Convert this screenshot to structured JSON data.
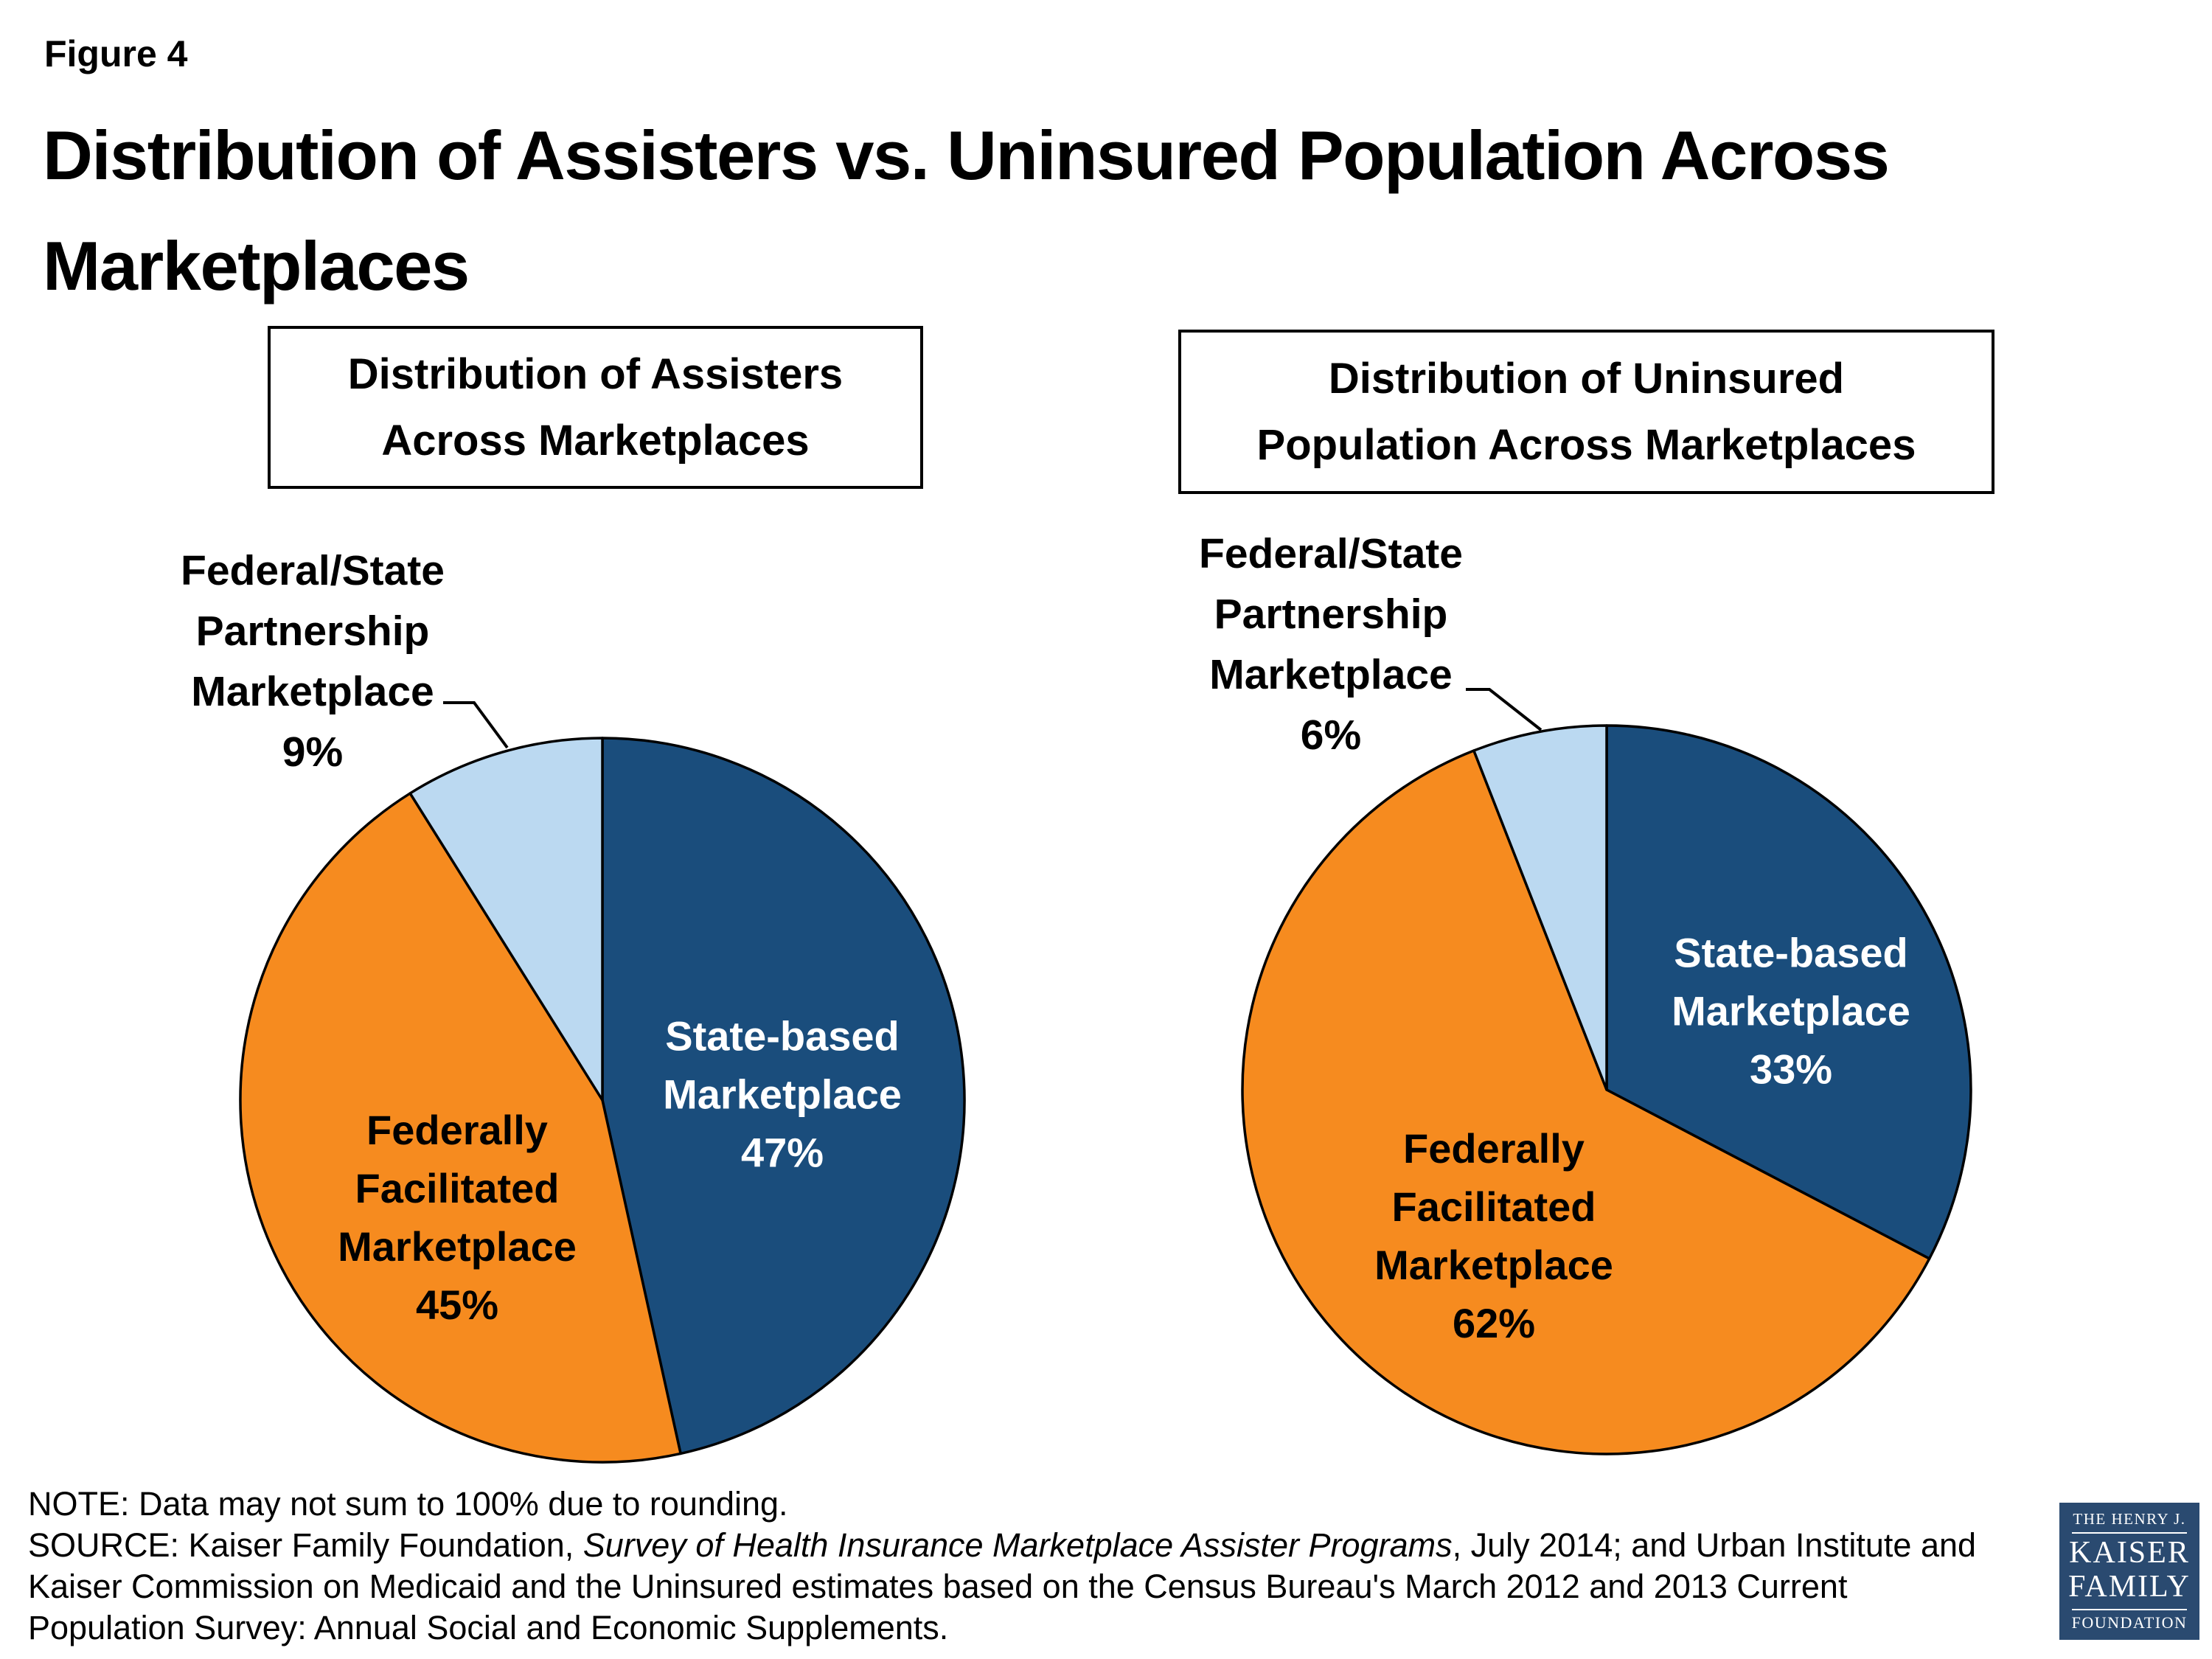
{
  "page": {
    "figure_label": "Figure 4",
    "title_lines": [
      "Distribution of Assisters vs. Uninsured Population Across",
      "Marketplaces"
    ]
  },
  "chart_data": [
    {
      "type": "pie",
      "title": "Distribution of Assisters Across Marketplaces",
      "title_lines": [
        "Distribution of Assisters",
        "Across Marketplaces"
      ],
      "start_angle": "12 o'clock, clockwise",
      "legend_position": "labels on/near slices",
      "slices": [
        {
          "name": "State-based Marketplace",
          "value_pct": 47,
          "color": "#1A4D7C",
          "text_color": "#FFFFFF",
          "label_placement": "inside",
          "label_lines": [
            "State-based",
            "Marketplace",
            "47%"
          ]
        },
        {
          "name": "Federally Facilitated Marketplace",
          "value_pct": 45,
          "color": "#F68B1F",
          "text_color": "#000000",
          "label_placement": "inside",
          "label_lines": [
            "Federally",
            "Facilitated",
            "Marketplace",
            "45%"
          ]
        },
        {
          "name": "Federal/State Partnership Marketplace",
          "value_pct": 9,
          "color": "#BBD9F1",
          "text_color": "#000000",
          "label_placement": "outside-callout",
          "label_lines": [
            "Federal/State",
            "Partnership",
            "Marketplace",
            "9%"
          ]
        }
      ]
    },
    {
      "type": "pie",
      "title": "Distribution of Uninsured Population Across Marketplaces",
      "title_lines": [
        "Distribution of Uninsured",
        "Population Across Marketplaces"
      ],
      "start_angle": "12 o'clock, clockwise",
      "legend_position": "labels on/near slices",
      "slices": [
        {
          "name": "State-based Marketplace",
          "value_pct": 33,
          "color": "#1A4D7C",
          "text_color": "#FFFFFF",
          "label_placement": "inside",
          "label_lines": [
            "State-based",
            "Marketplace",
            "33%"
          ]
        },
        {
          "name": "Federally Facilitated Marketplace",
          "value_pct": 62,
          "color": "#F68B1F",
          "text_color": "#000000",
          "label_placement": "inside",
          "label_lines": [
            "Federally",
            "Facilitated",
            "Marketplace",
            "62%"
          ]
        },
        {
          "name": "Federal/State Partnership Marketplace",
          "value_pct": 6,
          "color": "#BBD9F1",
          "text_color": "#000000",
          "label_placement": "outside-callout",
          "label_lines": [
            "Federal/State",
            "Partnership",
            "Marketplace",
            "6%"
          ]
        }
      ]
    }
  ],
  "colors": {
    "state_based": "#1A4D7C",
    "federally_facilitated": "#F68B1F",
    "partnership": "#BBD9F1",
    "slice_border": "#000000",
    "logo_bg": "#2A4A70"
  },
  "footnotes": {
    "note": "NOTE: Data may not sum to 100% due to rounding.",
    "source_prefix": "SOURCE: Kaiser Family Foundation, ",
    "source_italic": "Survey of Health Insurance Marketplace Assister Programs",
    "source_line1_suffix": ", July 2014; and Urban Institute and",
    "source_line2": "Kaiser Commission on Medicaid and the Uninsured estimates based on the Census Bureau's March 2012 and 2013 Current",
    "source_line3": "Population Survey: Annual Social and Economic Supplements."
  },
  "logo": {
    "top": "THE HENRY J.",
    "name1": "KAISER",
    "name2": "FAMILY",
    "bottom": "FOUNDATION"
  }
}
